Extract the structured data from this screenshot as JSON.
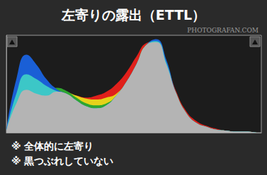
{
  "chart_data": {
    "type": "area",
    "title": "左寄りの露出（ETTL）",
    "annotations": [
      "PHOTOGRAFAN.COM"
    ],
    "notes": [
      "※ 全体的に左寄り",
      "※ 黒つぶれしていない"
    ],
    "x": [
      0,
      10,
      20,
      30,
      40,
      50,
      60,
      70,
      80,
      90,
      100,
      110,
      120,
      130,
      140,
      150,
      160,
      170,
      180,
      190,
      200,
      210,
      220,
      230,
      240,
      250
    ],
    "series": [
      {
        "color": "#e0201b",
        "values": [
          2,
          30,
          44,
          40,
          38,
          42,
          40,
          38,
          36,
          38,
          42,
          50,
          62,
          78,
          92,
          94,
          72,
          42,
          22,
          12,
          7,
          4,
          2,
          1,
          1,
          0
        ]
      },
      {
        "color": "#e6d21a",
        "values": [
          2,
          30,
          44,
          40,
          38,
          44,
          42,
          38,
          35,
          34,
          36,
          40,
          52,
          70,
          90,
          93,
          70,
          40,
          20,
          10,
          6,
          3,
          2,
          1,
          1,
          0
        ]
      },
      {
        "color": "#2fa52f",
        "values": [
          2,
          30,
          44,
          42,
          42,
          46,
          43,
          36,
          30,
          28,
          30,
          38,
          52,
          70,
          90,
          93,
          70,
          40,
          20,
          10,
          6,
          3,
          2,
          1,
          1,
          0
        ]
      },
      {
        "color": "#1a5fd6",
        "values": [
          3,
          55,
          80,
          70,
          55,
          45,
          40,
          33,
          27,
          25,
          28,
          38,
          52,
          70,
          90,
          96,
          75,
          40,
          20,
          10,
          6,
          3,
          2,
          1,
          1,
          0
        ]
      },
      {
        "color": "#3cc7c7",
        "values": [
          2,
          40,
          60,
          55,
          48,
          43,
          40,
          33,
          27,
          25,
          28,
          38,
          52,
          70,
          90,
          94,
          72,
          40,
          20,
          10,
          6,
          3,
          2,
          1,
          1,
          0
        ]
      },
      {
        "color": "#b4b4b4",
        "values": [
          2,
          30,
          44,
          40,
          38,
          42,
          40,
          33,
          27,
          25,
          28,
          38,
          52,
          70,
          90,
          93,
          70,
          40,
          20,
          10,
          6,
          3,
          2,
          1,
          1,
          0
        ]
      }
    ],
    "xlim": [
      0,
      255
    ],
    "ylim": [
      0,
      100
    ],
    "xticks": [],
    "yticks": [],
    "tick_labels": false,
    "grid": false
  }
}
